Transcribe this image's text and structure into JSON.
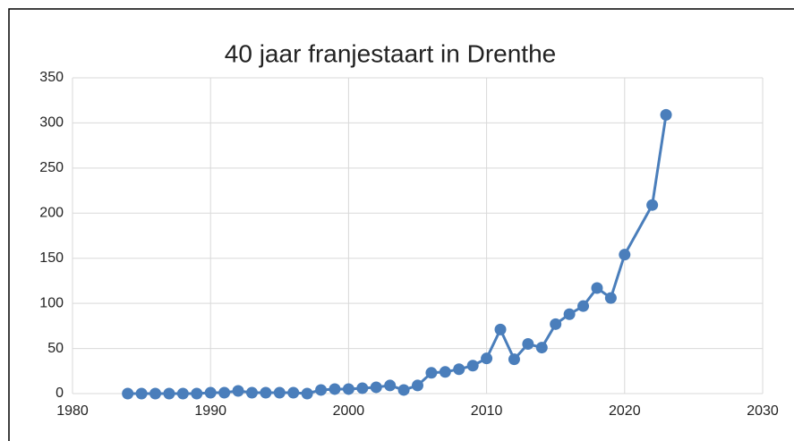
{
  "chart_data": {
    "type": "line",
    "title": "40 jaar franjestaart in Drenthe",
    "x": [
      1984,
      1985,
      1986,
      1987,
      1988,
      1989,
      1990,
      1991,
      1992,
      1993,
      1994,
      1995,
      1996,
      1997,
      1998,
      1999,
      2000,
      2001,
      2002,
      2003,
      2004,
      2005,
      2006,
      2007,
      2008,
      2009,
      2010,
      2011,
      2012,
      2013,
      2014,
      2015,
      2016,
      2017,
      2018,
      2019,
      2020,
      2022,
      2023
    ],
    "values": [
      0,
      0,
      0,
      0,
      0,
      0,
      1,
      1,
      3,
      1,
      1,
      1,
      1,
      0,
      4,
      5,
      5,
      6,
      7,
      9,
      4,
      9,
      23,
      24,
      27,
      31,
      39,
      71,
      38,
      55,
      51,
      77,
      88,
      97,
      117,
      106,
      154,
      209,
      309
    ],
    "color": "#4a7ebb",
    "xlim": [
      1980,
      2030
    ],
    "xticks": [
      1980,
      1990,
      2000,
      2010,
      2020,
      2030
    ],
    "ylim": [
      0,
      350
    ],
    "yticks": [
      0,
      50,
      100,
      150,
      200,
      250,
      300,
      350
    ],
    "grid": true
  }
}
